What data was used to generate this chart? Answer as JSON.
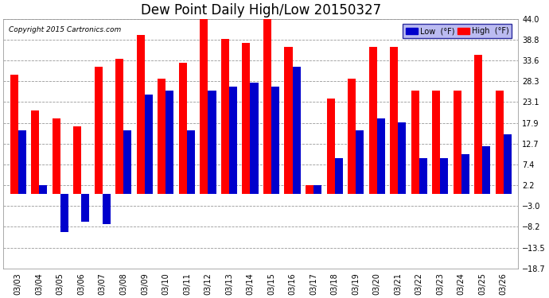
{
  "title": "Dew Point Daily High/Low 20150327",
  "copyright": "Copyright 2015 Cartronics.com",
  "dates": [
    "03/03",
    "03/04",
    "03/05",
    "03/06",
    "03/07",
    "03/08",
    "03/09",
    "03/10",
    "03/11",
    "03/12",
    "03/13",
    "03/14",
    "03/15",
    "03/16",
    "03/17",
    "03/18",
    "03/19",
    "03/20",
    "03/21",
    "03/22",
    "03/23",
    "03/24",
    "03/25",
    "03/26"
  ],
  "high": [
    30.0,
    21.0,
    19.0,
    17.0,
    32.0,
    34.0,
    40.0,
    29.0,
    33.0,
    44.0,
    39.0,
    38.0,
    44.0,
    37.0,
    2.2,
    24.0,
    29.0,
    37.0,
    37.0,
    26.0,
    26.0,
    26.0,
    35.0,
    26.0
  ],
  "low": [
    16.0,
    2.2,
    -9.5,
    -7.0,
    -7.5,
    16.0,
    25.0,
    26.0,
    16.0,
    26.0,
    27.0,
    28.0,
    27.0,
    32.0,
    2.2,
    9.0,
    16.0,
    19.0,
    18.0,
    9.0,
    9.0,
    10.0,
    12.0,
    15.0
  ],
  "ylim": [
    -18.7,
    44.0
  ],
  "yticks": [
    -18.7,
    -13.5,
    -8.2,
    -3.0,
    2.2,
    7.4,
    12.7,
    17.9,
    23.1,
    28.3,
    33.6,
    38.8,
    44.0
  ],
  "bar_width": 0.38,
  "high_color": "#FF0000",
  "low_color": "#0000CC",
  "bg_color": "#FFFFFF",
  "grid_color": "#999999",
  "title_fontsize": 12,
  "label_fontsize": 7.0
}
